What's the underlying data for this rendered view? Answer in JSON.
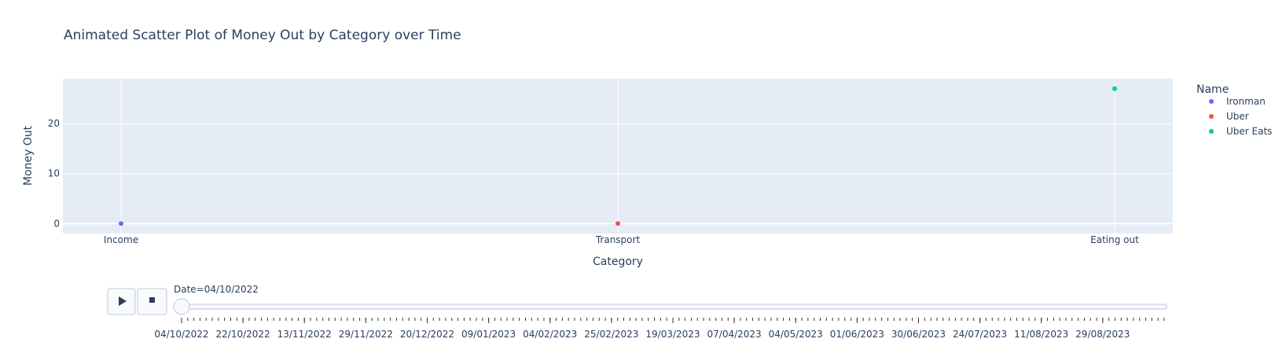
{
  "chart_data": {
    "type": "scatter",
    "title": "Animated Scatter Plot of Money Out by Category over Time",
    "xlabel": "Category",
    "ylabel": "Money Out",
    "categories": [
      "Income",
      "Transport",
      "Eating out"
    ],
    "ylim": [
      -2,
      29
    ],
    "yticks": [
      0,
      10,
      20
    ],
    "grid": true,
    "legend": {
      "title": "Name",
      "placement": "right"
    },
    "series": [
      {
        "name": "Ironman",
        "color": "#636efa",
        "points": [
          {
            "x": "Income",
            "y": 0
          }
        ]
      },
      {
        "name": "Uber",
        "color": "#EF553B",
        "points": [
          {
            "x": "Transport",
            "y": 0
          }
        ]
      },
      {
        "name": "Uber Eats",
        "color": "#00cc96",
        "points": [
          {
            "x": "Eating out",
            "y": 27
          }
        ]
      }
    ]
  },
  "animation": {
    "current_label": "Date=04/10/2022",
    "play_icon": "play-icon",
    "stop_icon": "stop-icon",
    "slider_value": 0,
    "frame_labels": [
      "04/10/2022",
      "22/10/2022",
      "13/11/2022",
      "29/11/2022",
      "20/12/2022",
      "09/01/2023",
      "04/02/2023",
      "25/02/2023",
      "19/03/2023",
      "07/04/2023",
      "04/05/2023",
      "01/06/2023",
      "30/06/2023",
      "24/07/2023",
      "11/08/2023",
      "29/08/2023"
    ]
  },
  "colors": {
    "plot_bg": "#e5ecf6",
    "grid": "#ffffff",
    "text": "#2a3f5f",
    "slider_border": "#bec8d9"
  }
}
